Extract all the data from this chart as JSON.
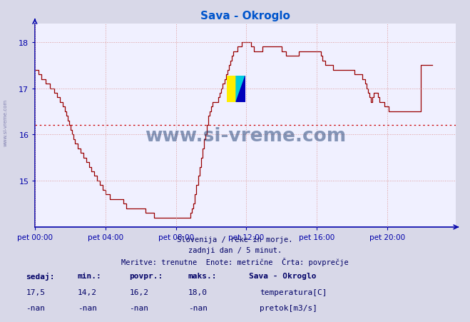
{
  "title": "Sava - Okroglo",
  "title_color": "#0055cc",
  "bg_color": "#d8d8e8",
  "plot_bg_color": "#f0f0ff",
  "line_color": "#990000",
  "avg_line_color": "#cc0000",
  "avg_value": 16.2,
  "ylim": [
    14.0,
    18.4
  ],
  "xlim_max": 287,
  "yticks": [
    15,
    16,
    17,
    18
  ],
  "xticks": [
    0,
    48,
    96,
    144,
    192,
    240
  ],
  "xtick_labels": [
    "pet 00:00",
    "pet 04:00",
    "pet 08:00",
    "pet 12:00",
    "pet 16:00",
    "pet 20:00"
  ],
  "grid_color": "#dd9999",
  "axis_color": "#0000aa",
  "text_color": "#000066",
  "footer_lines": [
    "Slovenija / reke in morje.",
    "zadnji dan / 5 minut.",
    "Meritve: trenutne  Enote: metrične  Črta: povprečje"
  ],
  "legend_title": "Sava - Okroglo",
  "legend_items": [
    {
      "label": "temperatura[C]",
      "color": "#cc0000"
    },
    {
      "label": "pretok[m3/s]",
      "color": "#00aa00"
    }
  ],
  "watermark": "www.si-vreme.com",
  "watermark_color": "#1a3a6e",
  "sidebar_text": "www.si-vreme.com",
  "temperature_data": [
    17.4,
    17.4,
    17.3,
    17.3,
    17.2,
    17.2,
    17.2,
    17.1,
    17.1,
    17.1,
    17.0,
    17.0,
    17.0,
    16.9,
    16.9,
    16.8,
    16.8,
    16.7,
    16.7,
    16.6,
    16.5,
    16.4,
    16.3,
    16.2,
    16.1,
    16.0,
    15.9,
    15.8,
    15.8,
    15.7,
    15.7,
    15.6,
    15.6,
    15.5,
    15.5,
    15.4,
    15.4,
    15.3,
    15.2,
    15.2,
    15.1,
    15.1,
    15.0,
    15.0,
    14.9,
    14.9,
    14.8,
    14.8,
    14.7,
    14.7,
    14.7,
    14.6,
    14.6,
    14.6,
    14.6,
    14.6,
    14.6,
    14.6,
    14.6,
    14.6,
    14.5,
    14.5,
    14.4,
    14.4,
    14.4,
    14.4,
    14.4,
    14.4,
    14.4,
    14.4,
    14.4,
    14.4,
    14.4,
    14.4,
    14.4,
    14.3,
    14.3,
    14.3,
    14.3,
    14.3,
    14.3,
    14.2,
    14.2,
    14.2,
    14.2,
    14.2,
    14.2,
    14.2,
    14.2,
    14.2,
    14.2,
    14.2,
    14.2,
    14.2,
    14.2,
    14.2,
    14.2,
    14.2,
    14.2,
    14.2,
    14.2,
    14.2,
    14.2,
    14.2,
    14.2,
    14.2,
    14.3,
    14.4,
    14.5,
    14.7,
    14.9,
    15.1,
    15.3,
    15.5,
    15.7,
    15.9,
    16.0,
    16.2,
    16.4,
    16.5,
    16.6,
    16.7,
    16.7,
    16.7,
    16.7,
    16.8,
    16.9,
    17.0,
    17.1,
    17.2,
    17.3,
    17.4,
    17.5,
    17.6,
    17.7,
    17.8,
    17.8,
    17.8,
    17.9,
    17.9,
    17.9,
    18.0,
    18.0,
    18.0,
    18.0,
    18.0,
    18.0,
    17.9,
    17.9,
    17.8,
    17.8,
    17.8,
    17.8,
    17.8,
    17.8,
    17.9,
    17.9,
    17.9,
    17.9,
    17.9,
    17.9,
    17.9,
    17.9,
    17.9,
    17.9,
    17.9,
    17.9,
    17.9,
    17.8,
    17.8,
    17.8,
    17.7,
    17.7,
    17.7,
    17.7,
    17.7,
    17.7,
    17.7,
    17.7,
    17.7,
    17.8,
    17.8,
    17.8,
    17.8,
    17.8,
    17.8,
    17.8,
    17.8,
    17.8,
    17.8,
    17.8,
    17.8,
    17.8,
    17.8,
    17.8,
    17.7,
    17.6,
    17.6,
    17.5,
    17.5,
    17.5,
    17.5,
    17.5,
    17.4,
    17.4,
    17.4,
    17.4,
    17.4,
    17.4,
    17.4,
    17.4,
    17.4,
    17.4,
    17.4,
    17.4,
    17.4,
    17.4,
    17.4,
    17.3,
    17.3,
    17.3,
    17.3,
    17.3,
    17.2,
    17.2,
    17.1,
    17.0,
    16.9,
    16.8,
    16.7,
    16.8,
    16.9,
    16.9,
    16.9,
    16.8,
    16.7,
    16.7,
    16.7,
    16.6,
    16.6,
    16.6,
    16.5,
    16.5,
    16.5,
    16.5,
    16.5,
    16.5,
    16.5,
    16.5,
    16.5,
    16.5,
    16.5,
    16.5,
    16.5,
    16.5,
    16.5,
    16.5,
    16.5,
    16.5,
    16.5,
    16.5,
    16.5,
    16.5,
    17.5,
    17.5,
    17.5,
    17.5,
    17.5,
    17.5,
    17.5,
    17.5,
    17.5
  ]
}
